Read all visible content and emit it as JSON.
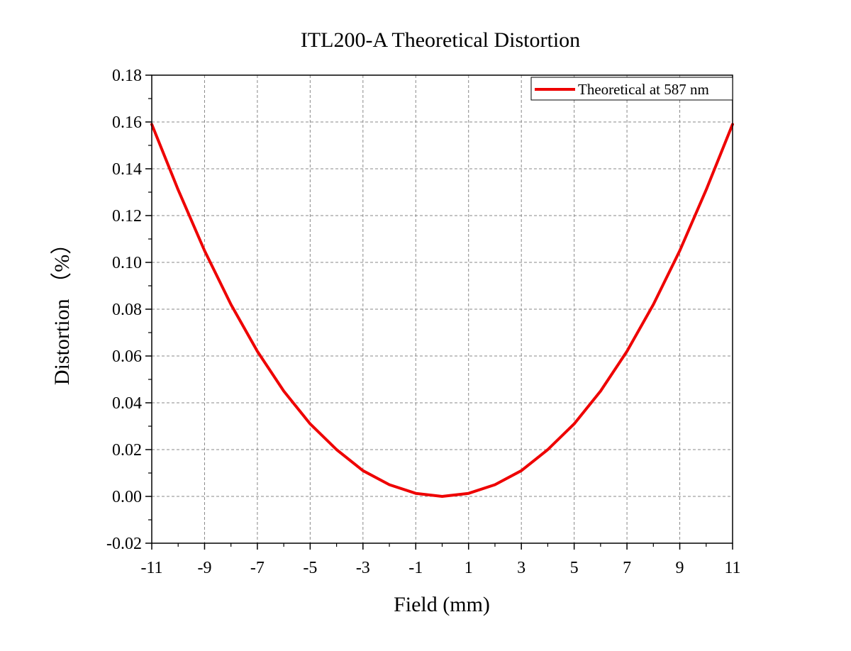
{
  "chart_data": {
    "type": "line",
    "title": "ITL200-A Theoretical Distortion",
    "xlabel": "Field (mm)",
    "ylabel": "Distortion （%）",
    "xlim": [
      -11,
      11
    ],
    "ylim": [
      -0.02,
      0.18
    ],
    "xticks": [
      -11,
      -9,
      -7,
      -5,
      -3,
      -1,
      1,
      3,
      5,
      7,
      9,
      11
    ],
    "xtick_labels": [
      "-11",
      "-9",
      "-7",
      "-5",
      "-3",
      "-1",
      "1",
      "3",
      "5",
      "7",
      "9",
      "11"
    ],
    "yticks": [
      -0.02,
      0,
      0.02,
      0.04,
      0.06,
      0.08,
      0.1,
      0.12,
      0.14,
      0.16,
      0.18
    ],
    "ytick_labels": [
      "-0.02",
      "0.00",
      "0.02",
      "0.04",
      "0.06",
      "0.08",
      "0.10",
      "0.12",
      "0.14",
      "0.16",
      "0.18"
    ],
    "grid": true,
    "legend_position": "top-right",
    "series": [
      {
        "name": "Theoretical at 587 nm",
        "color": "#ee0000",
        "x": [
          -11,
          -10,
          -9,
          -8,
          -7,
          -6,
          -5,
          -4,
          -3,
          -2,
          -1,
          0,
          1,
          2,
          3,
          4,
          5,
          6,
          7,
          8,
          9,
          10,
          11
        ],
        "values": [
          0.159,
          0.131,
          0.105,
          0.082,
          0.062,
          0.045,
          0.031,
          0.02,
          0.011,
          0.005,
          0.0013,
          0.0,
          0.0013,
          0.005,
          0.011,
          0.02,
          0.031,
          0.045,
          0.062,
          0.082,
          0.105,
          0.131,
          0.159
        ]
      }
    ]
  }
}
